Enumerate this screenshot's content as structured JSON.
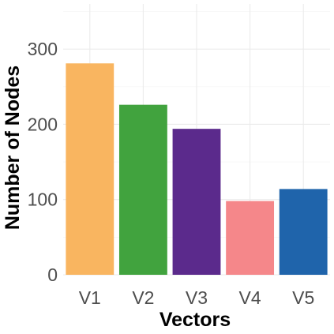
{
  "chart_data": {
    "type": "bar",
    "title": "",
    "xlabel": "Vectors",
    "ylabel": "Number of Nodes",
    "categories": [
      "V1",
      "V2",
      "V3",
      "V4",
      "V5"
    ],
    "values": [
      281,
      226,
      194,
      98,
      114
    ],
    "colors": [
      "#F9B560",
      "#41A33E",
      "#5B2A8C",
      "#F5878A",
      "#1F64AB"
    ],
    "ylim": [
      0,
      360
    ],
    "yticks": [
      0,
      100,
      200,
      300
    ],
    "grid": true,
    "legend": "none"
  }
}
